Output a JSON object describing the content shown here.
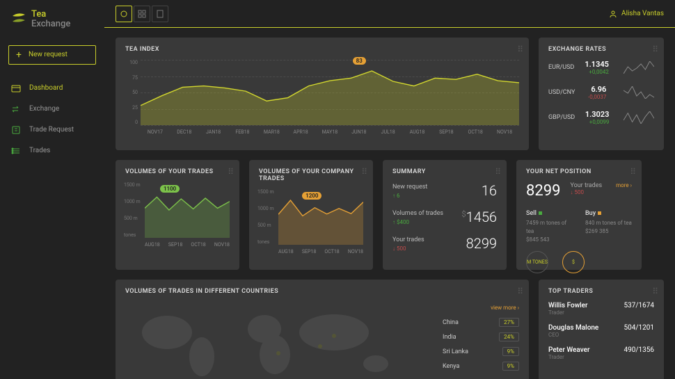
{
  "brand": {
    "line1": "Tea",
    "line2": "Exchange"
  },
  "new_request_label": "New request",
  "nav": {
    "items": [
      {
        "label": "Dashboard"
      },
      {
        "label": "Exchange"
      },
      {
        "label": "Trade Request"
      },
      {
        "label": "Trades"
      }
    ]
  },
  "user": {
    "name": "Alisha Vantas"
  },
  "tea_index": {
    "title": "TEA INDEX",
    "badge": "83",
    "y_ticks": [
      "100",
      "75",
      "50",
      "25",
      "0"
    ],
    "x_ticks": [
      "NOV17",
      "DEC18",
      "JAN18",
      "FEB18",
      "MAR18",
      "APR18",
      "MAY18",
      "JUN18",
      "JUL18",
      "AUG18",
      "SEP18",
      "OCT18",
      "NOV18"
    ],
    "ylim": [
      0,
      100
    ],
    "series": [
      30,
      45,
      58,
      60,
      57,
      52,
      37,
      42,
      60,
      68,
      72,
      83,
      67,
      60,
      72,
      70,
      78,
      68,
      65
    ],
    "line_color": "#d3d82e",
    "fill_top": "rgba(201,206,43,0.28)",
    "grid_color": "#4a4a4a"
  },
  "exchange_rates": {
    "title": "EXCHANGE RATES",
    "rows": [
      {
        "pair": "EUR/USD",
        "value": "1.1345",
        "delta": "+0,0042",
        "dir": "up",
        "spark": [
          5,
          10,
          7,
          9,
          12,
          8,
          14,
          10
        ]
      },
      {
        "pair": "USD/CNY",
        "value": "6.96",
        "delta": "-0,0037",
        "dir": "down",
        "spark": [
          12,
          10,
          15,
          8,
          11,
          6,
          9,
          7
        ]
      },
      {
        "pair": "GBP/USD",
        "value": "1.3023",
        "delta": "+0,0099",
        "dir": "up",
        "spark": [
          10,
          14,
          9,
          13,
          8,
          12,
          15,
          11
        ]
      }
    ]
  },
  "volumes_your": {
    "title": "VOLUMES OF YOUR TRADES",
    "chip": "1100",
    "y_ticks": [
      "1500 m",
      "1000 m",
      "500 m",
      "tones"
    ],
    "x_ticks": [
      "AUG18",
      "SEP18",
      "OCT18",
      "NOV18"
    ],
    "series": [
      800,
      1100,
      750,
      1050,
      780,
      1070,
      800,
      980
    ],
    "line_color": "#7cc24a",
    "fill": "rgba(124,194,74,0.25)"
  },
  "volumes_company": {
    "title": "VOLUMES OF YOUR COMPANY TRADES",
    "chip": "1200",
    "y_ticks": [
      "1500 m",
      "1000 m",
      "500 m",
      "tones"
    ],
    "x_ticks": [
      "AUG18",
      "SEP18",
      "OCT18",
      "NOV18"
    ],
    "series": [
      820,
      1200,
      780,
      1000,
      830,
      980,
      840,
      1150
    ],
    "line_color": "#e5a035",
    "fill": "rgba(229,160,53,0.25)"
  },
  "summary": {
    "title": "SUMMARY",
    "rows": [
      {
        "label": "New request",
        "sub_arrow": "↑",
        "sub": "6",
        "sub_class": "g",
        "value": "16",
        "prefix": ""
      },
      {
        "label": "Volumes of trades",
        "sub_arrow": "↑",
        "sub": "$400",
        "sub_class": "g",
        "value": "1456",
        "prefix": "$"
      },
      {
        "label": "Your trades",
        "sub_arrow": "↓",
        "sub": "500",
        "sub_class": "r",
        "value": "8299",
        "prefix": ""
      }
    ]
  },
  "net_position": {
    "title": "YOUR NET POSITION",
    "value": "8299",
    "your_trades_label": "Your trades",
    "your_trades_sub": "↓ 500",
    "more": "more ›",
    "sell": {
      "label": "Sell",
      "line1": "7459 m tones of tea",
      "line2": "$845 543",
      "circle": "M TONES"
    },
    "buy": {
      "label": "Buy",
      "line1": "840 m tones of tea",
      "line2": "$269 385",
      "circle": "$"
    }
  },
  "map": {
    "title": "VOLUMES OF TRADES IN DIFFERENT COUNTRIES",
    "view_more": "view more ›",
    "countries": [
      {
        "name": "China",
        "pct": "27%"
      },
      {
        "name": "India",
        "pct": "24%"
      },
      {
        "name": "Sri Lanka",
        "pct": "9%"
      },
      {
        "name": "Kenya",
        "pct": "9%"
      }
    ]
  },
  "top_traders": {
    "title": "TOP TRADERS",
    "rows": [
      {
        "name": "Willis Fowler",
        "role": "Trader",
        "value": "537/1674"
      },
      {
        "name": "Douglas Malone",
        "role": "CEO",
        "value": "504/1201"
      },
      {
        "name": "Peter Weaver",
        "role": "Trader",
        "value": "490/1356"
      }
    ]
  },
  "colors": {
    "accent": "#c9ce2b",
    "card_bg": "#393939",
    "page_bg": "#222222"
  }
}
